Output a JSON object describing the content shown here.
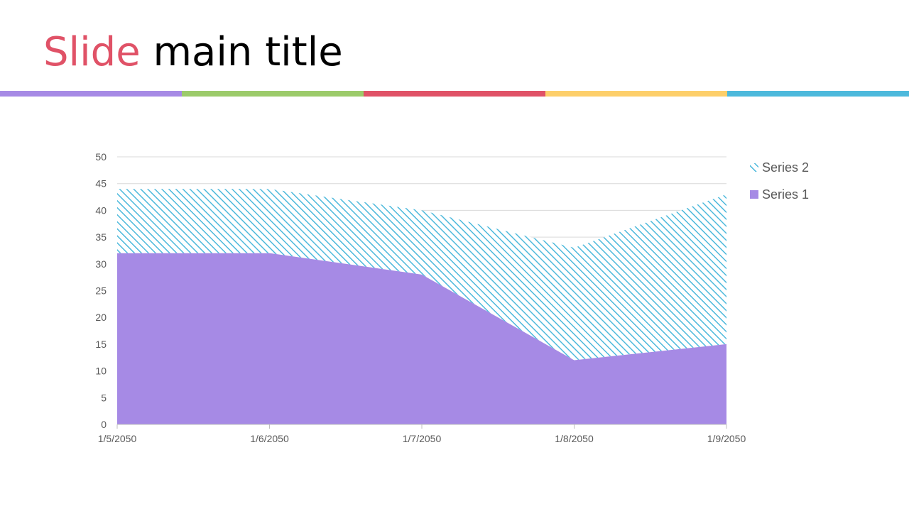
{
  "slide": {
    "title_part1": "Slide",
    "title_part2": " main title",
    "title_color_part1": "#e05267",
    "color_bar": [
      "#a68ae5",
      "#9ccb6a",
      "#e05267",
      "#fdcf6a",
      "#4db9dc"
    ]
  },
  "chart_data": {
    "type": "area",
    "stacked": true,
    "x": [
      "1/5/2050",
      "1/6/2050",
      "1/7/2050",
      "1/8/2050",
      "1/9/2050"
    ],
    "series": [
      {
        "name": "Series 1",
        "values": [
          32,
          32,
          28,
          12,
          15
        ],
        "color": "#a68ae5",
        "fill": "solid"
      },
      {
        "name": "Series 2",
        "values": [
          12,
          12,
          12,
          21,
          28
        ],
        "color": "#4db9dc",
        "fill": "diagonal-hatch"
      }
    ],
    "ylim": [
      0,
      50
    ],
    "yticks": [
      0,
      5,
      10,
      15,
      20,
      25,
      30,
      35,
      40,
      45,
      50
    ],
    "grid": true,
    "legend": {
      "position": "right",
      "order": [
        "Series 2",
        "Series 1"
      ]
    }
  }
}
